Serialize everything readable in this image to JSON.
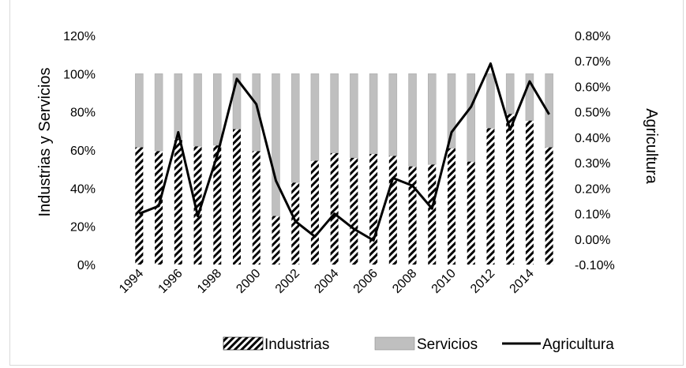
{
  "chart_data": {
    "type": "bar",
    "title": "",
    "x": [
      1994,
      1995,
      1996,
      1997,
      1998,
      1999,
      2000,
      2001,
      2002,
      2003,
      2004,
      2005,
      2006,
      2007,
      2008,
      2009,
      2010,
      2011,
      2012,
      2013,
      2014,
      2015
    ],
    "x_tick_labels": [
      "1994",
      "1996",
      "1998",
      "2000",
      "2002",
      "2004",
      "2006",
      "2008",
      "2010",
      "2012",
      "2014"
    ],
    "stacked": true,
    "series": [
      {
        "name": "Industrias",
        "axis": "left",
        "style": "hatched-bar",
        "values": [
          61.5,
          59.5,
          66,
          62,
          62.5,
          71,
          59.5,
          25.5,
          43,
          54.5,
          58.5,
          56,
          58,
          57,
          51.5,
          52.5,
          61,
          54,
          71.5,
          79,
          75.5,
          61.5
        ]
      },
      {
        "name": "Servicios",
        "axis": "left",
        "style": "gray-bar",
        "values": [
          38.5,
          40.5,
          34,
          38,
          37.5,
          29,
          40.5,
          74.5,
          57,
          45.5,
          41.5,
          44,
          42,
          43,
          48.5,
          47.5,
          39,
          46,
          28.5,
          21,
          24.5,
          38.5
        ]
      },
      {
        "name": "Agricultura",
        "axis": "right",
        "style": "line",
        "values": [
          0.1,
          0.13,
          0.42,
          0.09,
          0.33,
          0.63,
          0.53,
          0.23,
          0.07,
          0.01,
          0.1,
          0.04,
          -0.005,
          0.24,
          0.21,
          0.12,
          0.42,
          0.52,
          0.69,
          0.43,
          0.62,
          0.49
        ]
      }
    ],
    "y_left": {
      "label": "Industrias y Servicios",
      "lim": [
        0,
        120
      ],
      "ticks": [
        0,
        20,
        40,
        60,
        80,
        100,
        120
      ],
      "tick_labels": [
        "0%",
        "20%",
        "40%",
        "60%",
        "80%",
        "100%",
        "120%"
      ]
    },
    "y_right": {
      "label": "Agricultura",
      "lim": [
        -0.1,
        0.8
      ],
      "ticks": [
        -0.1,
        0.0,
        0.1,
        0.2,
        0.3,
        0.4,
        0.5,
        0.6,
        0.7,
        0.8
      ],
      "tick_labels": [
        "-0.10%",
        "0.00%",
        "0.10%",
        "0.20%",
        "0.30%",
        "0.40%",
        "0.50%",
        "0.60%",
        "0.70%",
        "0.80%"
      ]
    },
    "legend": {
      "position": "bottom",
      "entries": [
        "Industrias",
        "Servicios",
        "Agricultura"
      ]
    },
    "grid": false,
    "colors": {
      "servicios": "#bfbfbf",
      "agricultura": "#000000",
      "hatch": "#000000"
    }
  }
}
